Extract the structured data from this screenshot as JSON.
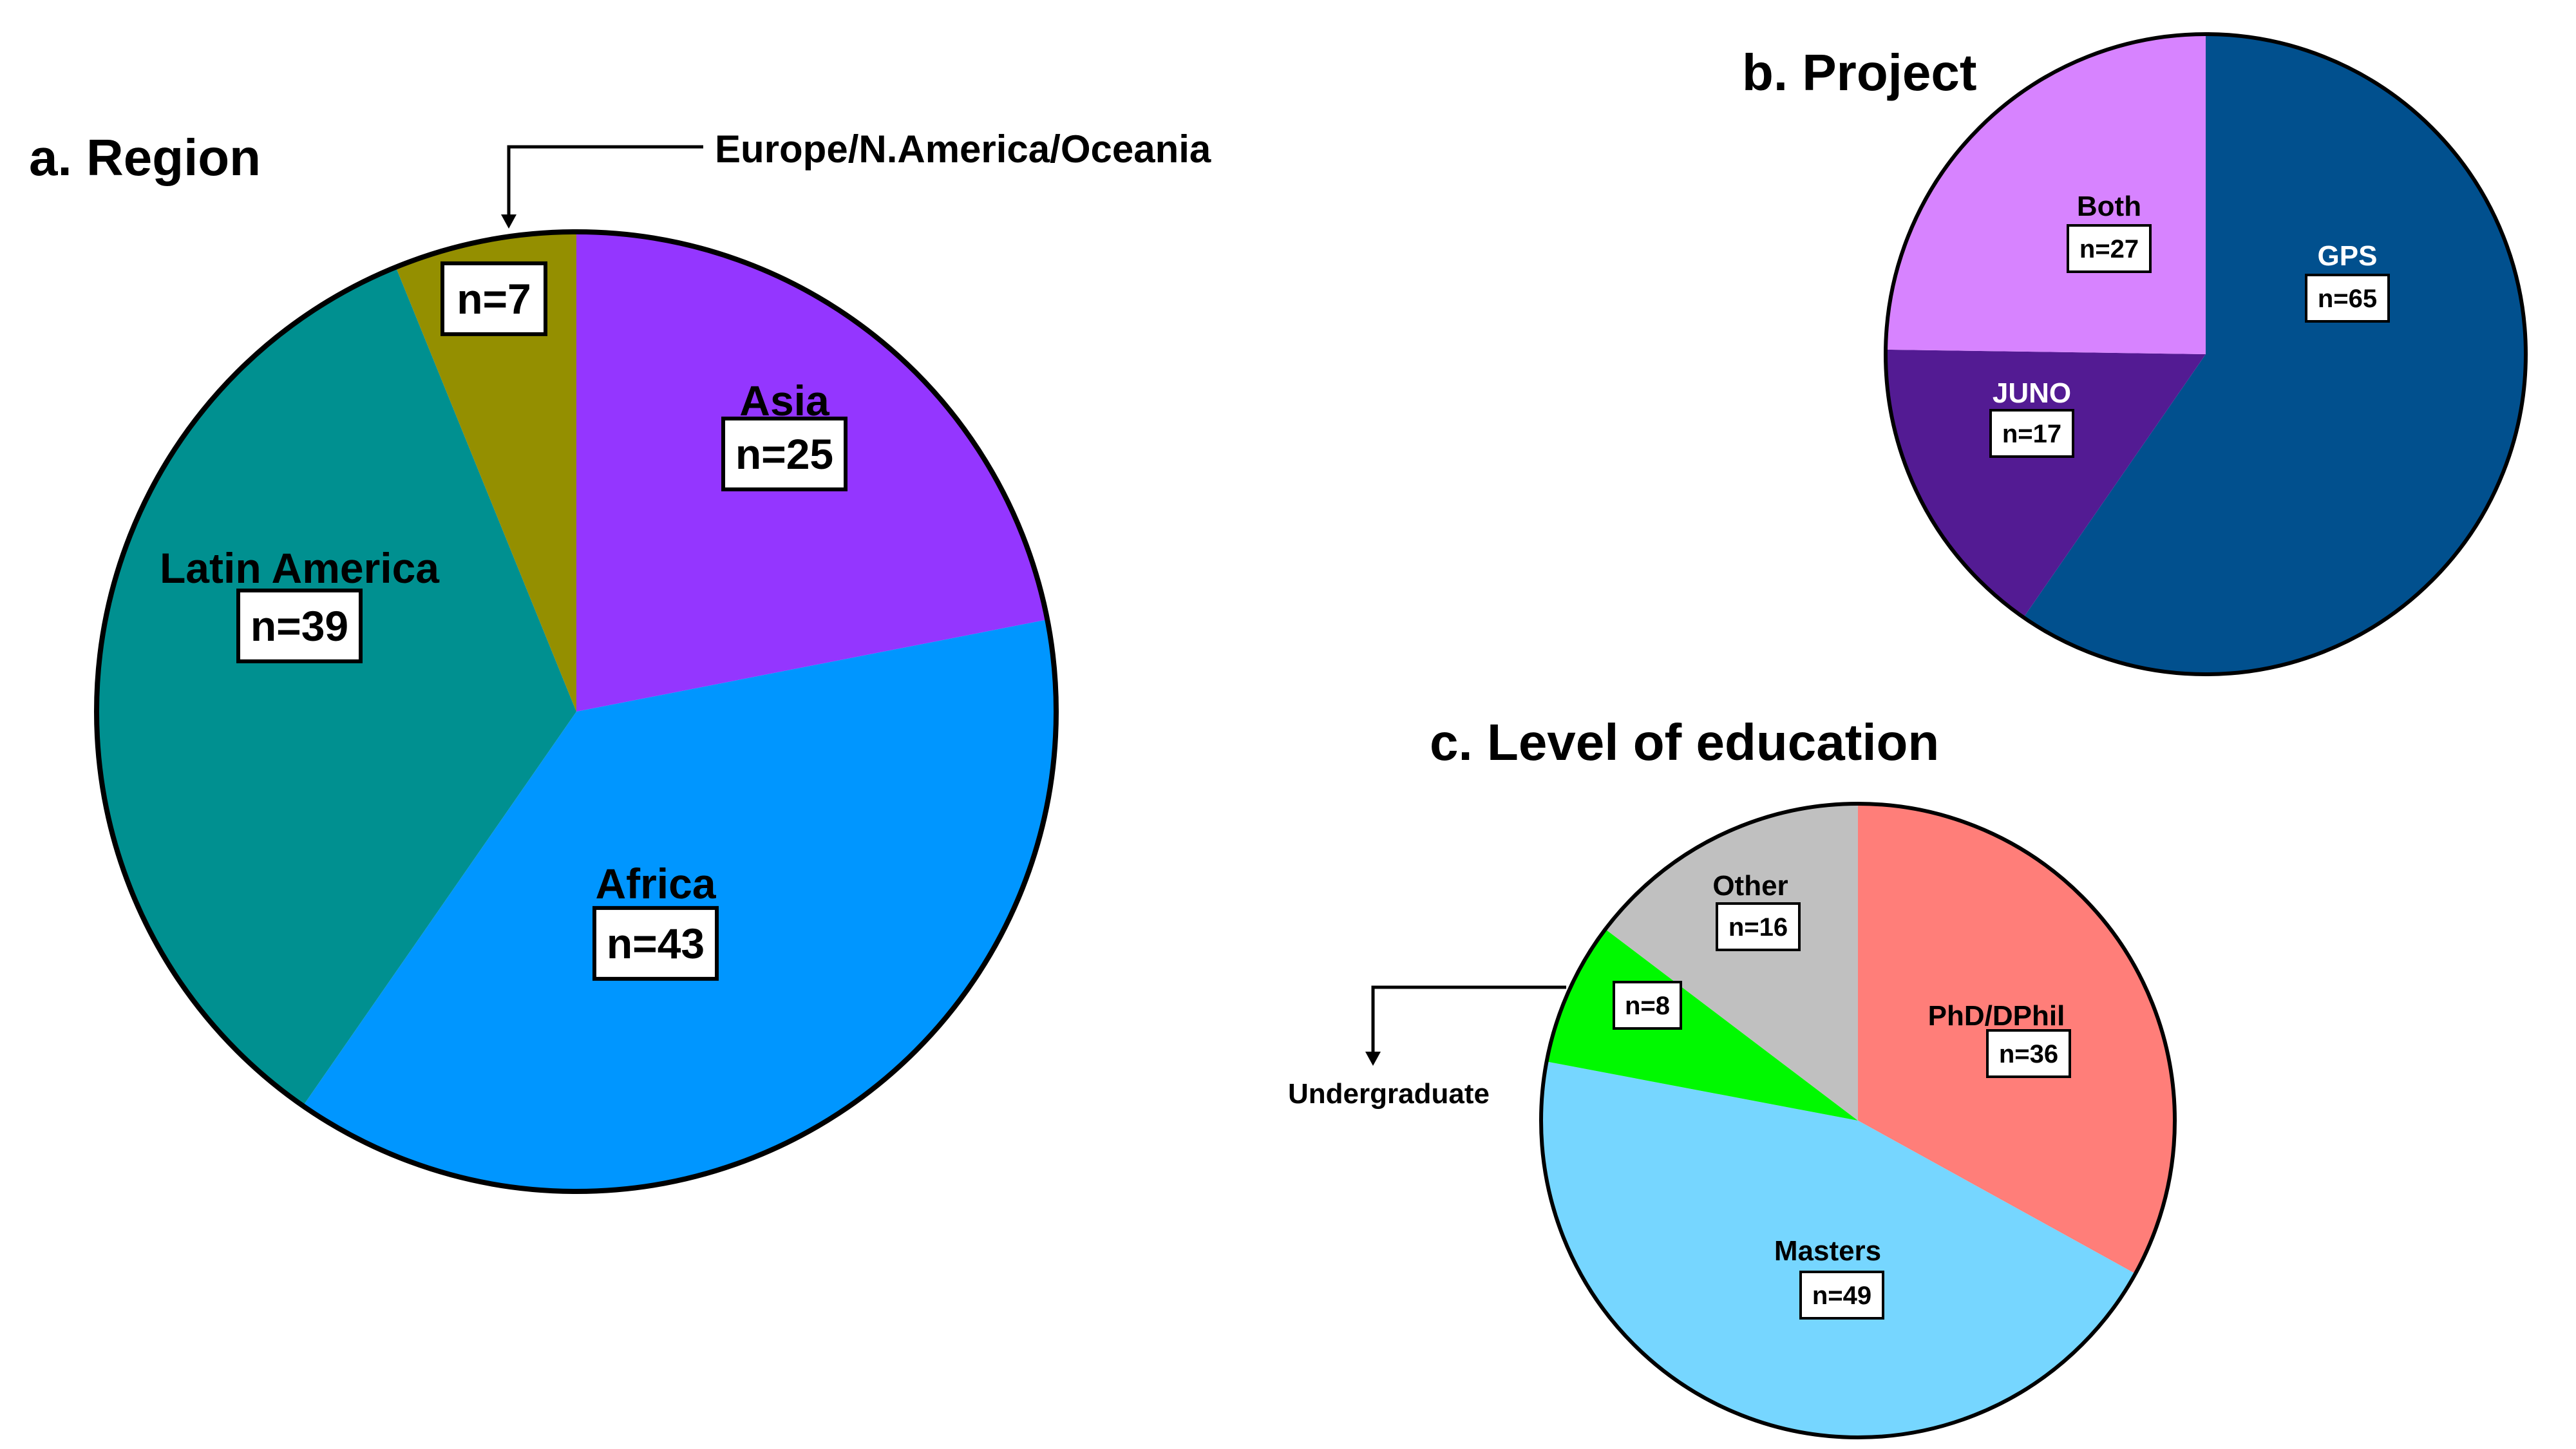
{
  "chart_data": [
    {
      "type": "pie",
      "title": "a. Region",
      "slices": [
        {
          "label": "Asia",
          "value": 25,
          "value_label": "n=25",
          "color": "#9436FF"
        },
        {
          "label": "Africa",
          "value": 43,
          "value_label": "n=43",
          "color": "#0096FF"
        },
        {
          "label": "Latin America",
          "value": 39,
          "value_label": "n=39",
          "color": "#009090"
        },
        {
          "label": "Europe/N.America/Oceania",
          "value": 7,
          "value_label": "n=7",
          "color": "#948F00"
        }
      ]
    },
    {
      "type": "pie",
      "title": "b. Project",
      "slices": [
        {
          "label": "GPS",
          "value": 65,
          "value_label": "n=65",
          "color": "#01508E"
        },
        {
          "label": "JUNO",
          "value": 17,
          "value_label": "n=17",
          "color": "#531B93"
        },
        {
          "label": "Both",
          "value": 27,
          "value_label": "n=27",
          "color": "#D783FF"
        }
      ]
    },
    {
      "type": "pie",
      "title": "c. Level of education",
      "slices": [
        {
          "label": "PhD/DPhil",
          "value": 36,
          "value_label": "n=36",
          "color": "#FF7E79"
        },
        {
          "label": "Masters",
          "value": 49,
          "value_label": "n=49",
          "color": "#76D6FF"
        },
        {
          "label": "Undergraduate",
          "value": 8,
          "value_label": "n=8",
          "color": "#00F900"
        },
        {
          "label": "Other",
          "value": 16,
          "value_label": "n=16",
          "color": "#C0C0C0"
        }
      ]
    }
  ]
}
